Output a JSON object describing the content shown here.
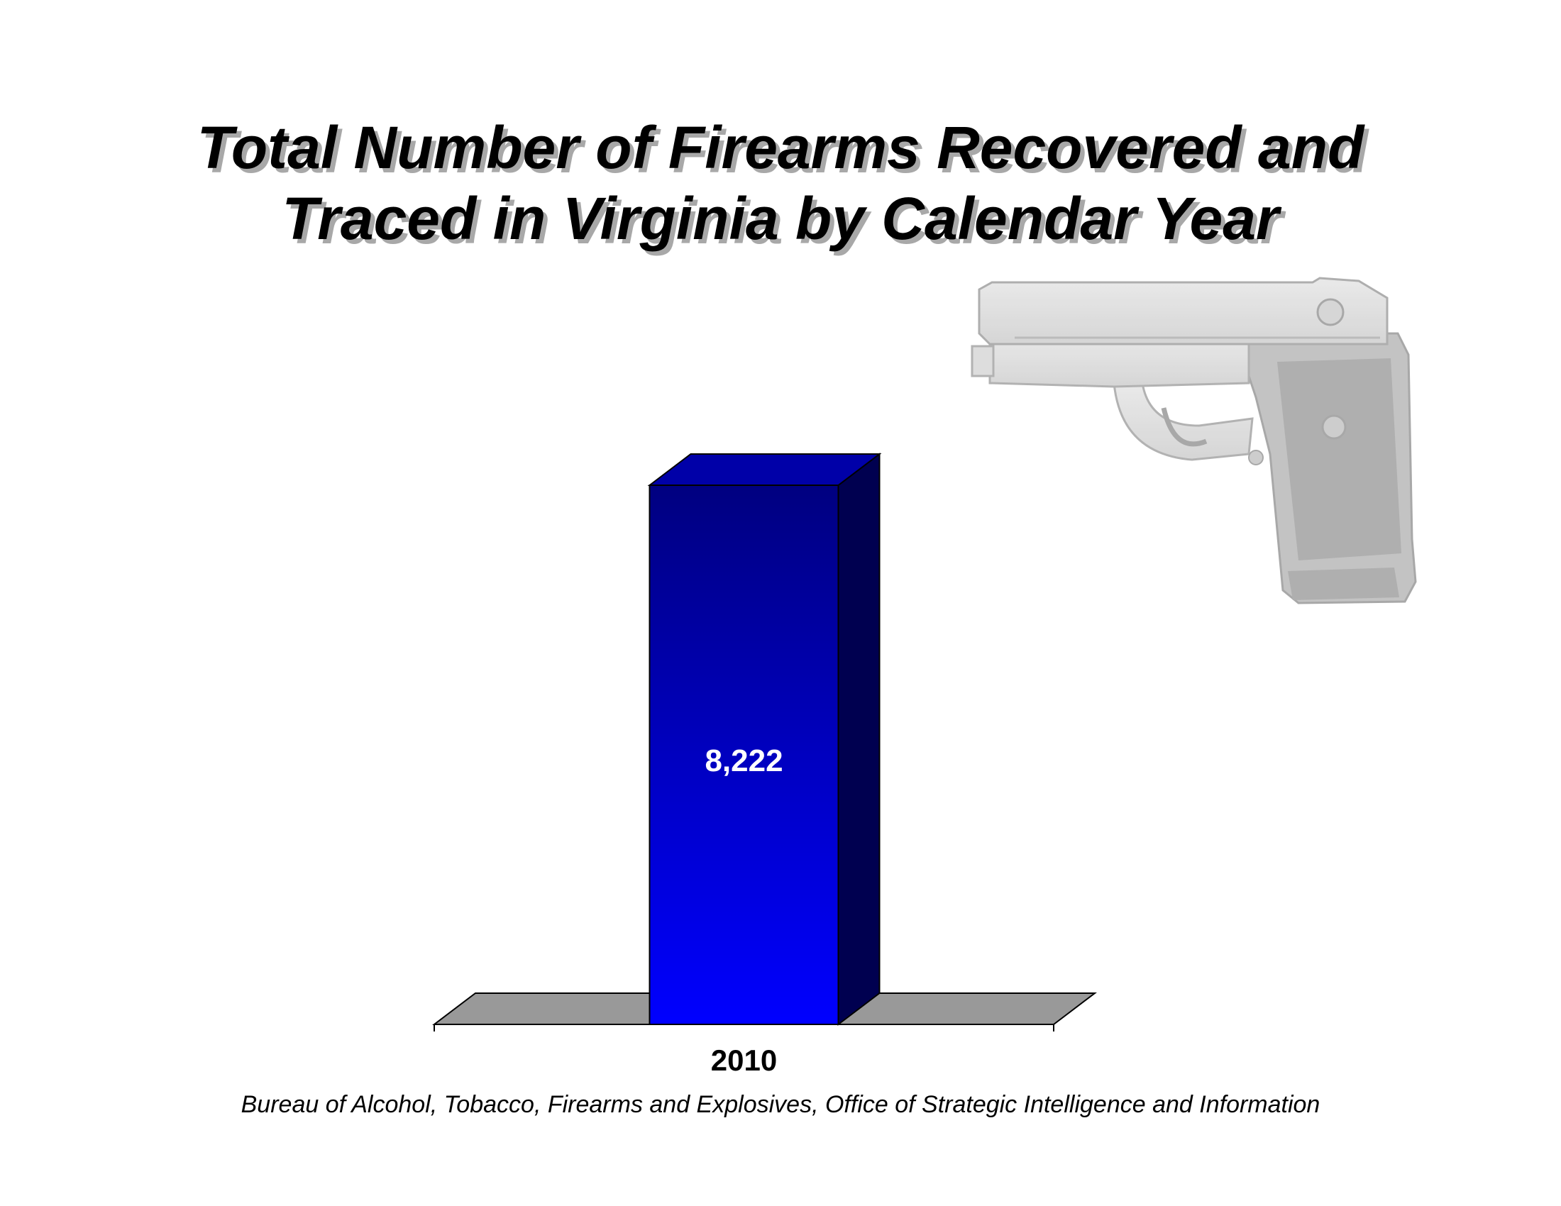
{
  "chart_data": {
    "type": "bar",
    "title": [
      "Total Number of Firearms Recovered and",
      "Traced in Virginia by Calendar Year"
    ],
    "categories": [
      "2010"
    ],
    "values": [
      8222
    ],
    "value_labels": [
      "8,222"
    ],
    "xlabel": "",
    "ylabel": "",
    "grid": false,
    "legend": "none",
    "style": "3d-column",
    "colors": {
      "bar_front_top": "#000080",
      "bar_front_bottom": "#0000ff",
      "bar_side": "#000050",
      "bar_top": "#0000a8",
      "floor": "#999999",
      "value_label": "#ffffff"
    },
    "source": "Bureau of Alcohol, Tobacco, Firearms and Explosives, Office of Strategic Intelligence and Information"
  },
  "decoration": {
    "icon": "pistol-icon"
  }
}
